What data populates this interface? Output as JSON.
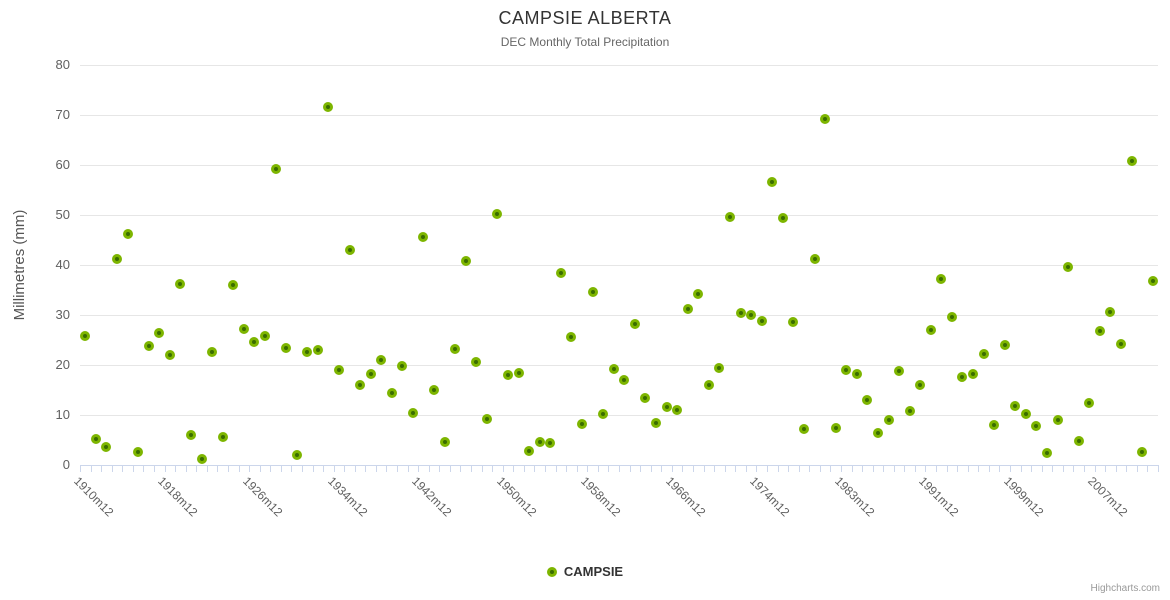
{
  "colors": {
    "title": "#333333",
    "subtitle": "#666666",
    "axis_label": "#606060",
    "axis_title": "#555555",
    "grid": "#e6e6e6",
    "axis_line": "#ccd6eb",
    "marker_ring": "#7db500",
    "marker_core": "#3a6d00",
    "legend": "#333333",
    "credits": "#999999"
  },
  "legend": {
    "label": "CAMPSIE",
    "position": "bottom"
  },
  "credits": {
    "label": "Highcharts.com"
  },
  "chart_data": {
    "type": "scatter",
    "title": "CAMPSIE ALBERTA",
    "subtitle": "DEC Monthly Total Precipitation",
    "xlabel": "",
    "ylabel": "Millimetres (mm)",
    "ylim": [
      0,
      80
    ],
    "ytick_step": 10,
    "grid": "horizontal-only",
    "legend_position": "bottom-center",
    "x_label_first": 1,
    "x_label_every": 8,
    "x_tick_labels": [
      "1910m12",
      "1918m12",
      "1926m12",
      "1934m12",
      "1942m12",
      "1950m12",
      "1958m12",
      "1966m12",
      "1974m12",
      "1983m12",
      "1991m12",
      "1999m12",
      "2007m12"
    ],
    "series_name": "CAMPSIE",
    "categories": [
      "1909m12",
      "1910m12",
      "1911m12",
      "1912m12",
      "1913m12",
      "1914m12",
      "1915m12",
      "1916m12",
      "1917m12",
      "1918m12",
      "1919m12",
      "1920m12",
      "1921m12",
      "1922m12",
      "1923m12",
      "1924m12",
      "1925m12",
      "1926m12",
      "1927m12",
      "1928m12",
      "1929m12",
      "1930m12",
      "1931m12",
      "1932m12",
      "1933m12",
      "1934m12",
      "1935m12",
      "1936m12",
      "1937m12",
      "1938m12",
      "1939m12",
      "1940m12",
      "1941m12",
      "1942m12",
      "1943m12",
      "1944m12",
      "1945m12",
      "1946m12",
      "1947m12",
      "1948m12",
      "1949m12",
      "1950m12",
      "1951m12",
      "1952m12",
      "1953m12",
      "1954m12",
      "1955m12",
      "1956m12",
      "1957m12",
      "1958m12",
      "1959m12",
      "1960m12",
      "1961m12",
      "1962m12",
      "1963m12",
      "1964m12",
      "1965m12",
      "1966m12",
      "1967m12",
      "1968m12",
      "1969m12",
      "1970m12",
      "1971m12",
      "1972m12",
      "1973m12",
      "1974m12",
      "1975m12",
      "1976m12",
      "1977m12",
      "1978m12",
      "1979m12",
      "1980m12",
      "1981m12",
      "1983m12",
      "1984m12",
      "1985m12",
      "1986m12",
      "1987m12",
      "1988m12",
      "1989m12",
      "1990m12",
      "1991m12",
      "1992m12",
      "1993m12",
      "1994m12",
      "1995m12",
      "1996m12",
      "1997m12",
      "1998m12",
      "1999m12",
      "2000m12",
      "2001m12",
      "2002m12",
      "2003m12",
      "2004m12",
      "2005m12",
      "2006m12",
      "2007m12",
      "2008m12",
      "2009m12",
      "2010m12",
      "2011m12"
    ],
    "values": [
      25.8,
      5.3,
      3.6,
      41.2,
      46.3,
      2.7,
      23.8,
      26.5,
      22.0,
      36.3,
      6.0,
      1.2,
      22.6,
      5.6,
      36.1,
      27.2,
      24.6,
      25.8,
      59.3,
      23.4,
      2.0,
      22.7,
      23.0,
      71.7,
      19.0,
      43.0,
      16.0,
      18.3,
      21.0,
      14.4,
      19.9,
      10.5,
      45.7,
      15.1,
      4.7,
      23.2,
      40.8,
      20.6,
      9.2,
      50.2,
      18.0,
      18.4,
      2.9,
      4.7,
      4.5,
      38.4,
      25.6,
      8.2,
      34.7,
      10.3,
      19.2,
      17.0,
      28.2,
      13.5,
      8.4,
      11.6,
      11.1,
      31.3,
      34.2,
      16.0,
      19.4,
      49.6,
      30.4,
      30.1,
      28.8,
      56.6,
      49.4,
      28.6,
      7.2,
      41.2,
      69.2,
      7.4,
      19.0,
      18.2,
      13.0,
      6.5,
      9.1,
      18.8,
      10.9,
      16.1,
      27.1,
      37.3,
      29.6,
      17.6,
      18.3,
      22.3,
      8.1,
      24.0,
      11.9,
      10.2,
      7.8,
      2.4,
      9.0,
      39.6,
      4.8,
      12.4,
      26.9,
      30.6,
      24.2,
      60.9,
      2.6,
      36.8
    ]
  }
}
